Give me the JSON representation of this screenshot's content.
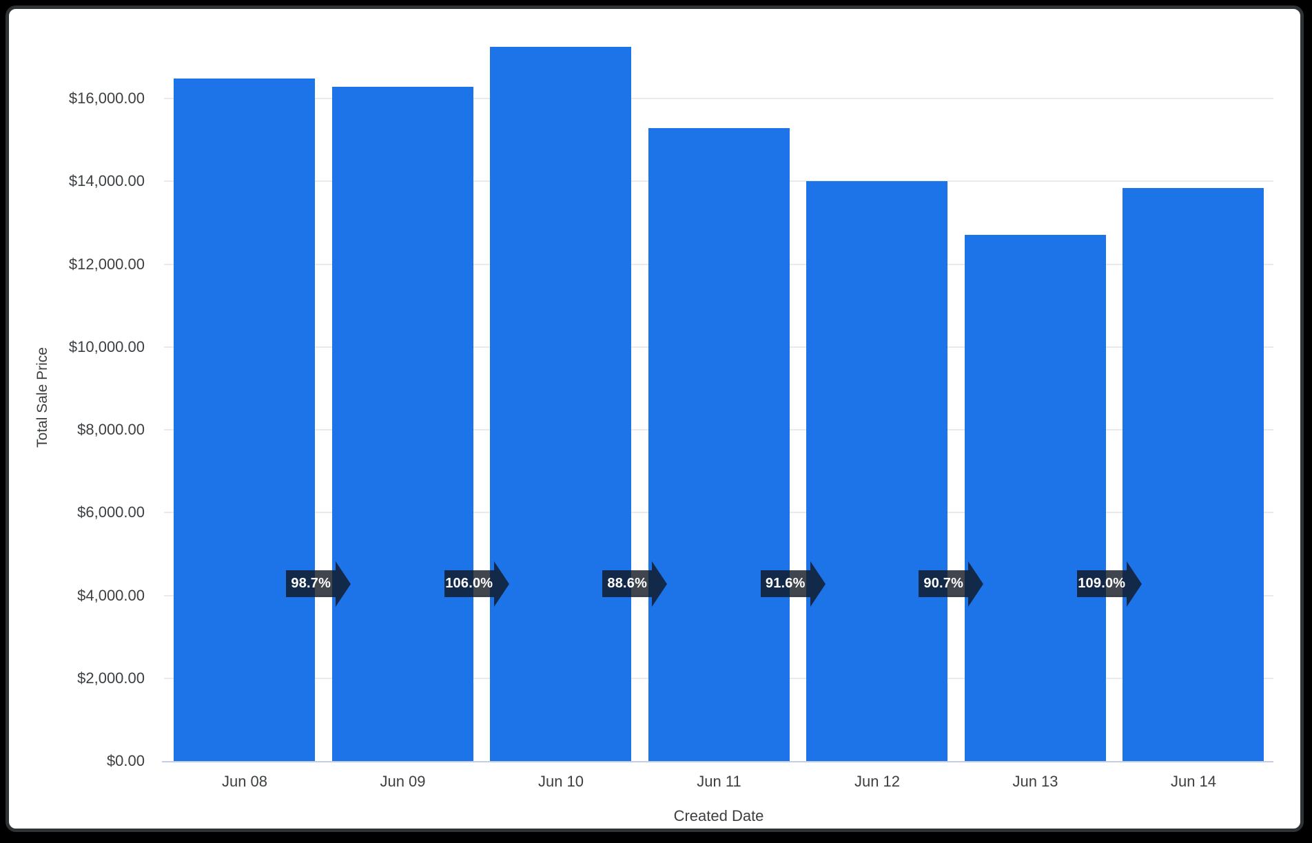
{
  "chart_data": {
    "type": "bar",
    "title": "",
    "xlabel": "Created Date",
    "ylabel": "Total Sale Price",
    "categories": [
      "Jun 08",
      "Jun 09",
      "Jun 10",
      "Jun 11",
      "Jun 12",
      "Jun 13",
      "Jun 14"
    ],
    "values": [
      16490,
      16276,
      17253,
      15286,
      14002,
      12700,
      13843
    ],
    "pct_change_labels": [
      "98.7%",
      "106.0%",
      "88.6%",
      "91.6%",
      "90.7%",
      "109.0%"
    ],
    "y_tick_values": [
      0,
      2000,
      4000,
      6000,
      8000,
      10000,
      12000,
      14000,
      16000
    ],
    "y_tick_labels": [
      "$0.00",
      "$2,000.00",
      "$4,000.00",
      "$6,000.00",
      "$8,000.00",
      "$10,000.00",
      "$12,000.00",
      "$14,000.00",
      "$16,000.00"
    ],
    "ylim": [
      0,
      18160
    ],
    "grid": "horizontal",
    "legend": "none",
    "colors": {
      "bar": "#1d73e8",
      "gridline": "#e8eaed",
      "axis_line": "#c4cde2",
      "axis_text": "#3c4043",
      "badge_bg": "rgba(16,22,34,0.8)",
      "badge_text": "#ffffff",
      "card_bg": "#ffffff",
      "card_border": "#2e3336",
      "page_bg": "#000000"
    }
  }
}
